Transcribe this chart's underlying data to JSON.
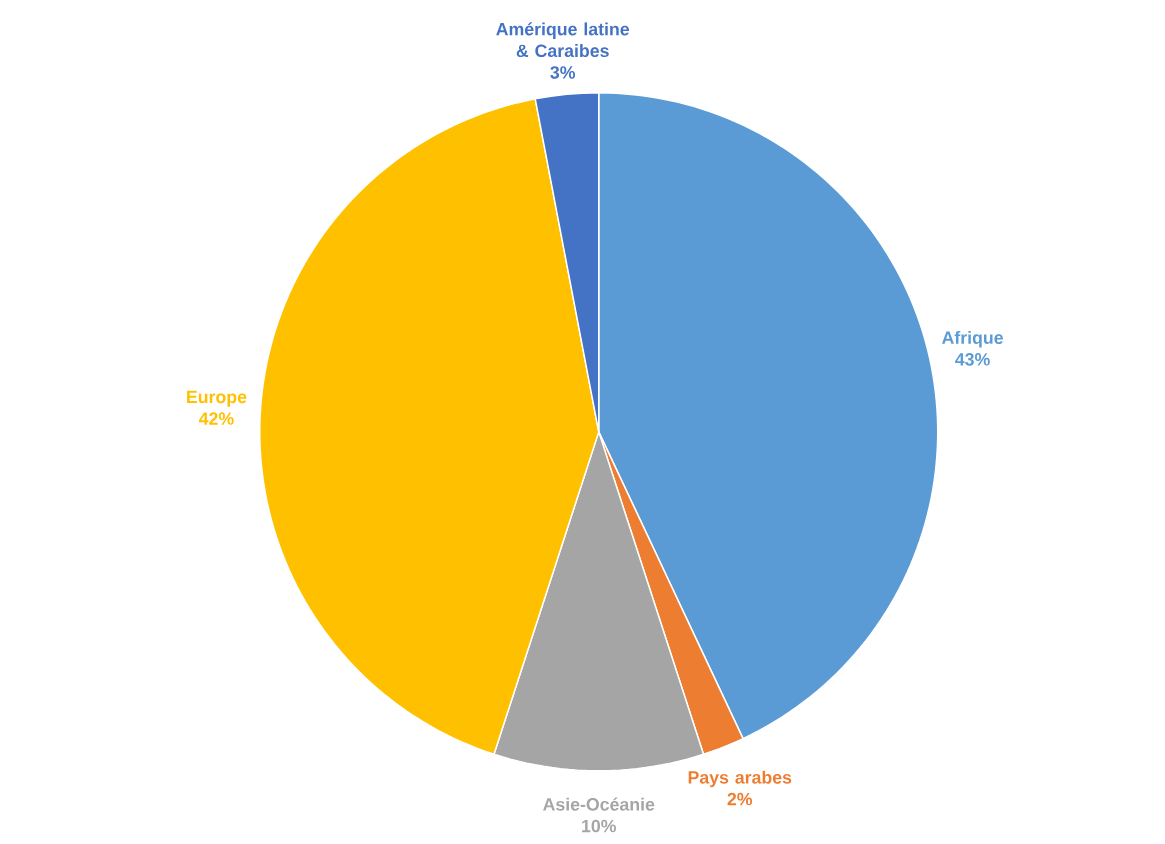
{
  "chart_data": {
    "type": "pie",
    "categories": [
      "Afrique",
      "Pays arabes",
      "Asie-Océanie",
      "Europe",
      "Amérique latine & Caraibes"
    ],
    "values": [
      43,
      2,
      10,
      42,
      3
    ],
    "value_labels": [
      "43%",
      "2%",
      "10%",
      "42%",
      "3%"
    ],
    "colors": [
      "#5b9bd5",
      "#ed7d31",
      "#a5a5a5",
      "#ffc000",
      "#4472c4"
    ]
  }
}
